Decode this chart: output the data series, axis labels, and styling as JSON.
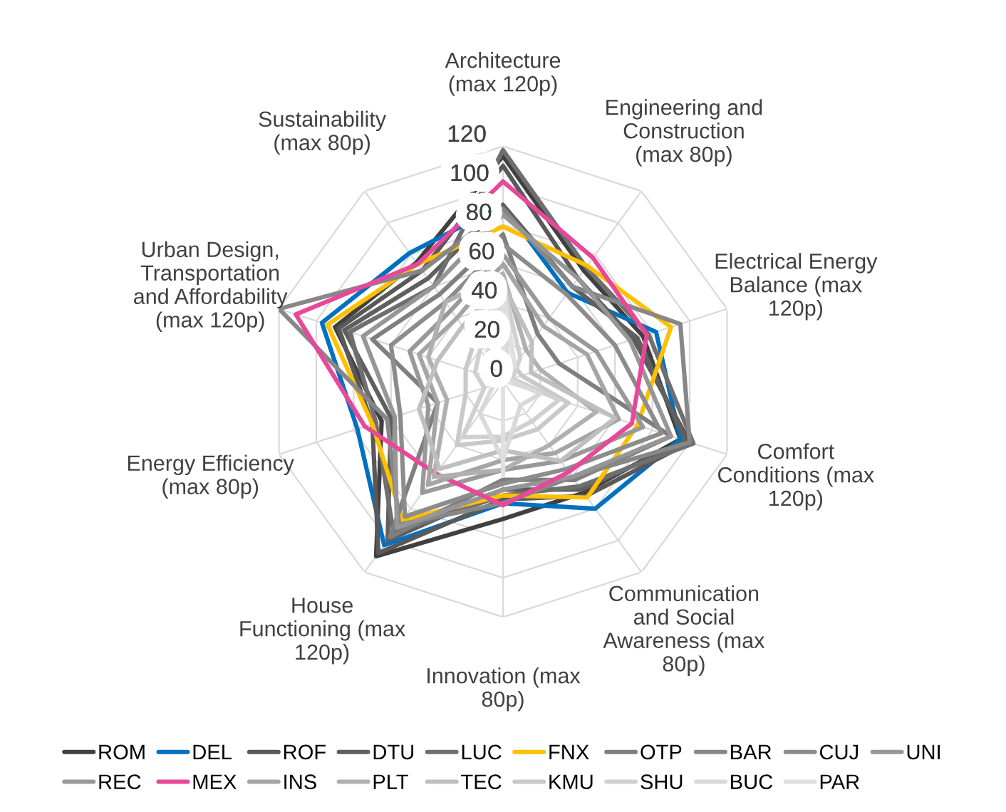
{
  "chart_data": {
    "type": "radar",
    "categories": [
      "Architecture\n(max 120p)",
      "Engineering and\nConstruction\n(max 80p)",
      "Electrical Energy\nBalance (max\n120p)",
      "Comfort\nConditions (max\n120p)",
      "Communication\nand Social\nAwareness (max\n80p)",
      "Innovation (max\n80p)",
      "House\nFunctioning (max\n120p)",
      "Energy Efficiency\n(max 80p)",
      "Urban Design,\nTransportation\nand Affordability\n(max 120p)",
      "Sustainability\n(max 80p)"
    ],
    "ylim": [
      0,
      120
    ],
    "yticks": [
      0,
      20,
      40,
      60,
      80,
      100,
      120
    ],
    "grid": true,
    "legend": "bottom",
    "line_style": "solid",
    "marker": "none",
    "series": [
      {
        "name": "ROM",
        "color": "#404040",
        "values": [
          115,
          70,
          75,
          95,
          70,
          70,
          110,
          65,
          90,
          75
        ]
      },
      {
        "name": "DEL",
        "color": "#0070c0",
        "values": [
          90,
          56,
          82,
          95,
          80,
          62,
          103,
          78,
          97,
          81
        ]
      },
      {
        "name": "ROF",
        "color": "#595959",
        "values": [
          110,
          65,
          70,
          100,
          72,
          60,
          108,
          70,
          88,
          70
        ]
      },
      {
        "name": "DTU",
        "color": "#5f5f5f",
        "values": [
          90,
          60,
          72,
          98,
          68,
          55,
          100,
          60,
          85,
          65
        ]
      },
      {
        "name": "LUC",
        "color": "#6f6f6f",
        "values": [
          118,
          72,
          78,
          102,
          66,
          58,
          95,
          68,
          82,
          60
        ]
      },
      {
        "name": "FNX",
        "color": "#ffc000",
        "values": [
          79,
          73,
          90,
          72,
          73,
          58,
          87,
          70,
          94,
          74
        ]
      },
      {
        "name": "OTP",
        "color": "#7f7f7f",
        "values": [
          75,
          30,
          30,
          90,
          62,
          50,
          98,
          35,
          70,
          55
        ]
      },
      {
        "name": "BAR",
        "color": "#878787",
        "values": [
          88,
          60,
          95,
          100,
          60,
          62,
          90,
          62,
          120,
          70
        ]
      },
      {
        "name": "CUJ",
        "color": "#8c8c8c",
        "values": [
          70,
          55,
          60,
          85,
          55,
          52,
          85,
          55,
          60,
          50
        ]
      },
      {
        "name": "UNI",
        "color": "#969696",
        "values": [
          85,
          65,
          68,
          90,
          60,
          55,
          92,
          58,
          75,
          60
        ]
      },
      {
        "name": "REC",
        "color": "#999999",
        "values": [
          65,
          40,
          50,
          75,
          50,
          45,
          70,
          40,
          50,
          45
        ]
      },
      {
        "name": "MEX",
        "color": "#e8489a",
        "values": [
          102,
          78,
          77,
          69,
          57,
          63,
          58,
          74,
          111,
          74
        ]
      },
      {
        "name": "INS",
        "color": "#a5a5a5",
        "values": [
          60,
          35,
          45,
          62,
          45,
          40,
          65,
          35,
          45,
          40
        ]
      },
      {
        "name": "PLT",
        "color": "#b0b0b0",
        "values": [
          55,
          20,
          20,
          50,
          40,
          45,
          60,
          30,
          40,
          50
        ]
      },
      {
        "name": "TEC",
        "color": "#bfbfbf",
        "values": [
          50,
          25,
          15,
          60,
          50,
          35,
          55,
          45,
          35,
          35
        ]
      },
      {
        "name": "KMU",
        "color": "#c9c9c9",
        "values": [
          48,
          10,
          10,
          35,
          30,
          30,
          40,
          20,
          20,
          25
        ]
      },
      {
        "name": "SHU",
        "color": "#d0d0d0",
        "values": [
          50,
          15,
          5,
          30,
          25,
          28,
          35,
          10,
          15,
          20
        ]
      },
      {
        "name": "BUC",
        "color": "#d9d9d9",
        "values": [
          45,
          5,
          3,
          20,
          15,
          40,
          20,
          5,
          10,
          15
        ]
      },
      {
        "name": "PAR",
        "color": "#e0e0e0",
        "values": [
          48,
          10,
          0,
          0,
          0,
          48,
          0,
          0,
          0,
          0
        ]
      }
    ]
  }
}
